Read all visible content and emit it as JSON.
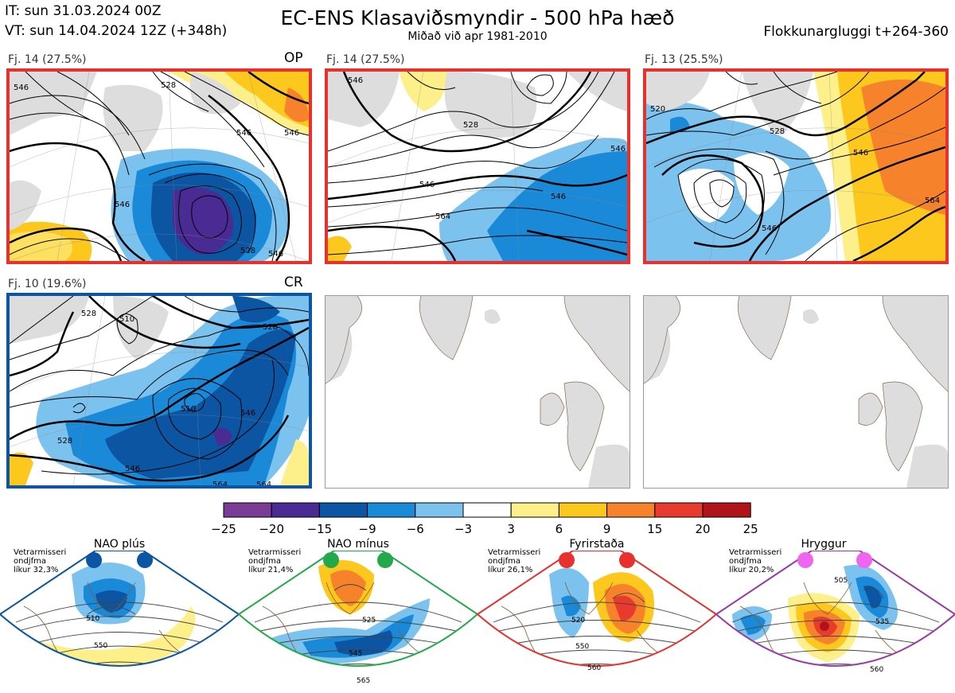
{
  "header": {
    "it": "IT: sun 31.03.2024 00Z",
    "vt": "VT: sun 14.04.2024 12Z  (+348h)",
    "title": "EC-ENS Klasaviðsmyndir - 500 hPa hæð",
    "subtitle": "Miðað við apr 1981-2010",
    "window": "Flokkunargluggi t+264-360"
  },
  "panels": [
    {
      "label": "Fj. 14 (27.5%)",
      "tag": "OP",
      "frame": "#e8302c"
    },
    {
      "label": "Fj. 14 (27.5%)",
      "tag": "",
      "frame": "#e8302c"
    },
    {
      "label": "Fj. 13 (25.5%)",
      "tag": "",
      "frame": "#e8302c"
    },
    {
      "label": "Fj. 10 (19.6%)",
      "tag": "CR",
      "frame": "#0b55a3"
    },
    {
      "label": "",
      "tag": "",
      "frame": ""
    },
    {
      "label": "",
      "tag": "",
      "frame": ""
    }
  ],
  "contour_labels": {
    "p1": [
      "546",
      "528",
      "546",
      "546",
      "528",
      "546",
      "546"
    ],
    "p2": [
      "528",
      "546",
      "564",
      "546",
      "546",
      "546"
    ],
    "p3": [
      "520",
      "528",
      "546",
      "546",
      "564"
    ],
    "p4": [
      "528",
      "510",
      "528",
      "546",
      "546",
      "528",
      "510",
      "564",
      "564"
    ]
  },
  "regimes": [
    {
      "name": "NAO plús",
      "info": [
        "Vetrarmisseri",
        "ondjfma",
        "líkur 32,3%"
      ],
      "color": "#0b55a3",
      "contours": [
        "510",
        "550"
      ]
    },
    {
      "name": "NAO mínus",
      "info": [
        "Vetrarmisseri",
        "ondjfma",
        "líkur 21,4%"
      ],
      "color": "#22aa4a",
      "contours": [
        "525",
        "545",
        "565"
      ]
    },
    {
      "name": "Fyrirstaða",
      "info": [
        "Vetrarmisseri",
        "ondjfma",
        "líkur 26,1%"
      ],
      "color": "#e8302c",
      "contours": [
        "520",
        "550",
        "560"
      ]
    },
    {
      "name": "Hryggur",
      "info": [
        "Vetrarmisseri",
        "ondjfma",
        "líkur 20,2%"
      ],
      "color": "#ee66ee",
      "contours": [
        "505",
        "535",
        "560"
      ]
    }
  ],
  "chart_data": {
    "type": "heatmap",
    "title": "EC-ENS Klasaviðsmyndir - 500 hPa hæð",
    "subtitle": "Miðað við apr 1981-2010",
    "colorbar": {
      "ticks": [
        -25,
        -20,
        -15,
        -9,
        -6,
        -3,
        3,
        6,
        9,
        15,
        20,
        25
      ],
      "colors": [
        "#7a3c96",
        "#4a2b93",
        "#0b55a3",
        "#1a8ad8",
        "#7cc2ee",
        "#ffffff",
        "#fdf08a",
        "#fdc81e",
        "#f6822b",
        "#e83a2d",
        "#b01418"
      ]
    },
    "clusters": [
      {
        "label": "Fj. 14 (27.5%)",
        "members": 14,
        "probability": 27.5,
        "tag": "OP"
      },
      {
        "label": "Fj. 14 (27.5%)",
        "members": 14,
        "probability": 27.5
      },
      {
        "label": "Fj. 13 (25.5%)",
        "members": 13,
        "probability": 25.5
      },
      {
        "label": "Fj. 10 (19.6%)",
        "members": 10,
        "probability": 19.6,
        "tag": "CR"
      }
    ],
    "regimes": [
      {
        "name": "NAO plús",
        "probability": 32.3
      },
      {
        "name": "NAO mínus",
        "probability": 21.4
      },
      {
        "name": "Fyrirstaða",
        "probability": 26.1
      },
      {
        "name": "Hryggur",
        "probability": 20.2
      }
    ]
  }
}
